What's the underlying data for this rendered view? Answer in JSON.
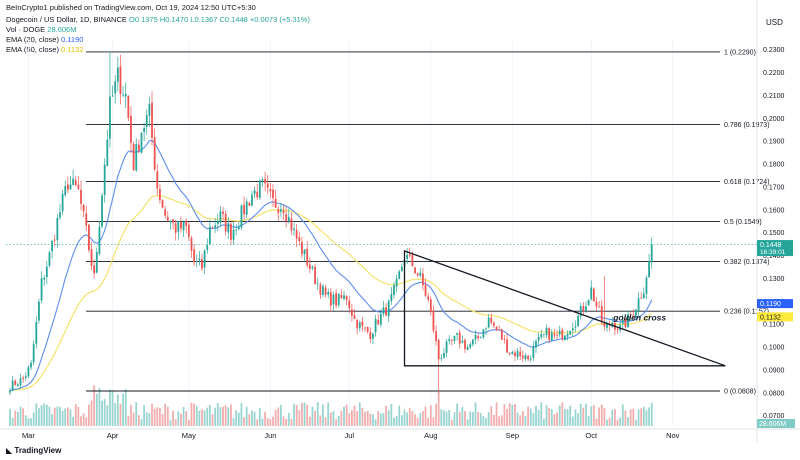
{
  "header": {
    "publish_line": "BeInCrypto1 published on TradingView.com, Oct 19, 2024 12:50 UTC+5:30",
    "symbol": "Dogecoin / US Dollar, 1D, BINANCE",
    "ohlc": "O0.1375 H0.1470 L0.1367 C0.1448 +0.0073 (+5.31%)",
    "vol_label": "Vol · DOGE",
    "vol_value": "28.606M",
    "ema20_label": "EMA (20, close)",
    "ema20_value": "0.1190",
    "ema50_label": "EMA (50, close)",
    "ema50_value": "0.1132"
  },
  "footer": {
    "brand": "TradingView"
  },
  "currency": "USD",
  "colors": {
    "up": "#26a69a",
    "down": "#ef5350",
    "ema20": "#5b8def",
    "ema50": "#f3e36b",
    "price_tag": "#26a69a",
    "ema20_tag": "#2962ff",
    "ema50_tag": "#ffeb3b"
  },
  "chart_data": {
    "type": "candlestick",
    "months": [
      {
        "label": "Mar",
        "index": 7
      },
      {
        "label": "Apr",
        "index": 39
      },
      {
        "label": "May",
        "index": 68
      },
      {
        "label": "Jun",
        "index": 99
      },
      {
        "label": "Jul",
        "index": 129
      },
      {
        "label": "Aug",
        "index": 160
      },
      {
        "label": "Sep",
        "index": 191
      },
      {
        "label": "Oct",
        "index": 221
      },
      {
        "label": "Nov",
        "index": 252
      }
    ],
    "y_ticks": [
      0.07,
      0.08,
      0.09,
      0.1,
      0.11,
      0.12,
      0.13,
      0.14,
      0.15,
      0.16,
      0.17,
      0.18,
      0.19,
      0.2,
      0.21,
      0.22,
      0.23
    ],
    "y_tick_labels": [
      "0.0700",
      "0.0800",
      "0.0900",
      "0.1000",
      "0.1100",
      "0.1200",
      "0.1300",
      "0.1400",
      "0.1500",
      "0.1600",
      "0.1700",
      "0.1800",
      "0.1900",
      "0.2000",
      "0.2100",
      "0.2200",
      "0.2300"
    ],
    "ylim": [
      0.0655,
      0.2342
    ],
    "fib_levels": [
      {
        "label": "1 (0.2290)",
        "value": 0.229
      },
      {
        "label": "0.786 (0.1973)",
        "value": 0.1973
      },
      {
        "label": "0.618 (0.1724)",
        "value": 0.1724
      },
      {
        "label": "0.5 (0.1549)",
        "value": 0.1549
      },
      {
        "label": "0.382 (0.1374)",
        "value": 0.1374
      },
      {
        "label": "0.236 (0.1157)",
        "value": 0.1157
      },
      {
        "label": "0 (0.0808)",
        "value": 0.0808
      }
    ],
    "price_tag": {
      "value": 0.1448,
      "label": "0.1448",
      "countdown": "16:39:01"
    },
    "ema20_tag": {
      "value": 0.119,
      "label": "0.1190"
    },
    "ema50_tag": {
      "value": 0.1132,
      "label": "0.1132"
    },
    "volume_tag": {
      "label": "28.606M"
    },
    "annotation": {
      "text": "golden cross",
      "x_index": 221,
      "value": 0.113
    },
    "triangle": {
      "start_index": 150,
      "end_index": 272,
      "top_value": 0.142,
      "bottom_value": 0.0918
    },
    "anchors": [
      {
        "i": 0,
        "v": 0.083
      },
      {
        "i": 5,
        "v": 0.086
      },
      {
        "i": 8,
        "v": 0.092
      },
      {
        "i": 12,
        "v": 0.128
      },
      {
        "i": 15,
        "v": 0.14
      },
      {
        "i": 18,
        "v": 0.155
      },
      {
        "i": 22,
        "v": 0.172
      },
      {
        "i": 26,
        "v": 0.168
      },
      {
        "i": 29,
        "v": 0.15
      },
      {
        "i": 32,
        "v": 0.13
      },
      {
        "i": 35,
        "v": 0.168
      },
      {
        "i": 38,
        "v": 0.205
      },
      {
        "i": 41,
        "v": 0.218
      },
      {
        "i": 44,
        "v": 0.21
      },
      {
        "i": 47,
        "v": 0.18
      },
      {
        "i": 50,
        "v": 0.195
      },
      {
        "i": 53,
        "v": 0.202
      },
      {
        "i": 56,
        "v": 0.17
      },
      {
        "i": 59,
        "v": 0.158
      },
      {
        "i": 63,
        "v": 0.152
      },
      {
        "i": 67,
        "v": 0.152
      },
      {
        "i": 70,
        "v": 0.137
      },
      {
        "i": 73,
        "v": 0.135
      },
      {
        "i": 76,
        "v": 0.152
      },
      {
        "i": 80,
        "v": 0.157
      },
      {
        "i": 84,
        "v": 0.15
      },
      {
        "i": 88,
        "v": 0.158
      },
      {
        "i": 92,
        "v": 0.167
      },
      {
        "i": 96,
        "v": 0.17
      },
      {
        "i": 100,
        "v": 0.163
      },
      {
        "i": 104,
        "v": 0.162
      },
      {
        "i": 108,
        "v": 0.15
      },
      {
        "i": 112,
        "v": 0.14
      },
      {
        "i": 116,
        "v": 0.13
      },
      {
        "i": 120,
        "v": 0.122
      },
      {
        "i": 124,
        "v": 0.12
      },
      {
        "i": 128,
        "v": 0.122
      },
      {
        "i": 131,
        "v": 0.112
      },
      {
        "i": 134,
        "v": 0.108
      },
      {
        "i": 137,
        "v": 0.106
      },
      {
        "i": 140,
        "v": 0.112
      },
      {
        "i": 144,
        "v": 0.118
      },
      {
        "i": 147,
        "v": 0.127
      },
      {
        "i": 150,
        "v": 0.14
      },
      {
        "i": 153,
        "v": 0.136
      },
      {
        "i": 156,
        "v": 0.13
      },
      {
        "i": 159,
        "v": 0.12
      },
      {
        "i": 161,
        "v": 0.108
      },
      {
        "i": 163,
        "v": 0.095
      },
      {
        "i": 166,
        "v": 0.1
      },
      {
        "i": 170,
        "v": 0.104
      },
      {
        "i": 174,
        "v": 0.1
      },
      {
        "i": 178,
        "v": 0.104
      },
      {
        "i": 182,
        "v": 0.112
      },
      {
        "i": 186,
        "v": 0.106
      },
      {
        "i": 190,
        "v": 0.098
      },
      {
        "i": 194,
        "v": 0.097
      },
      {
        "i": 197,
        "v": 0.095
      },
      {
        "i": 200,
        "v": 0.101
      },
      {
        "i": 204,
        "v": 0.106
      },
      {
        "i": 208,
        "v": 0.104
      },
      {
        "i": 212,
        "v": 0.108
      },
      {
        "i": 216,
        "v": 0.113
      },
      {
        "i": 219,
        "v": 0.12
      },
      {
        "i": 221,
        "v": 0.125
      },
      {
        "i": 223,
        "v": 0.118
      },
      {
        "i": 226,
        "v": 0.108
      },
      {
        "i": 229,
        "v": 0.111
      },
      {
        "i": 232,
        "v": 0.108
      },
      {
        "i": 235,
        "v": 0.112
      },
      {
        "i": 238,
        "v": 0.118
      },
      {
        "i": 241,
        "v": 0.126
      },
      {
        "i": 243,
        "v": 0.1375
      },
      {
        "i": 244,
        "v": 0.1448
      }
    ]
  }
}
